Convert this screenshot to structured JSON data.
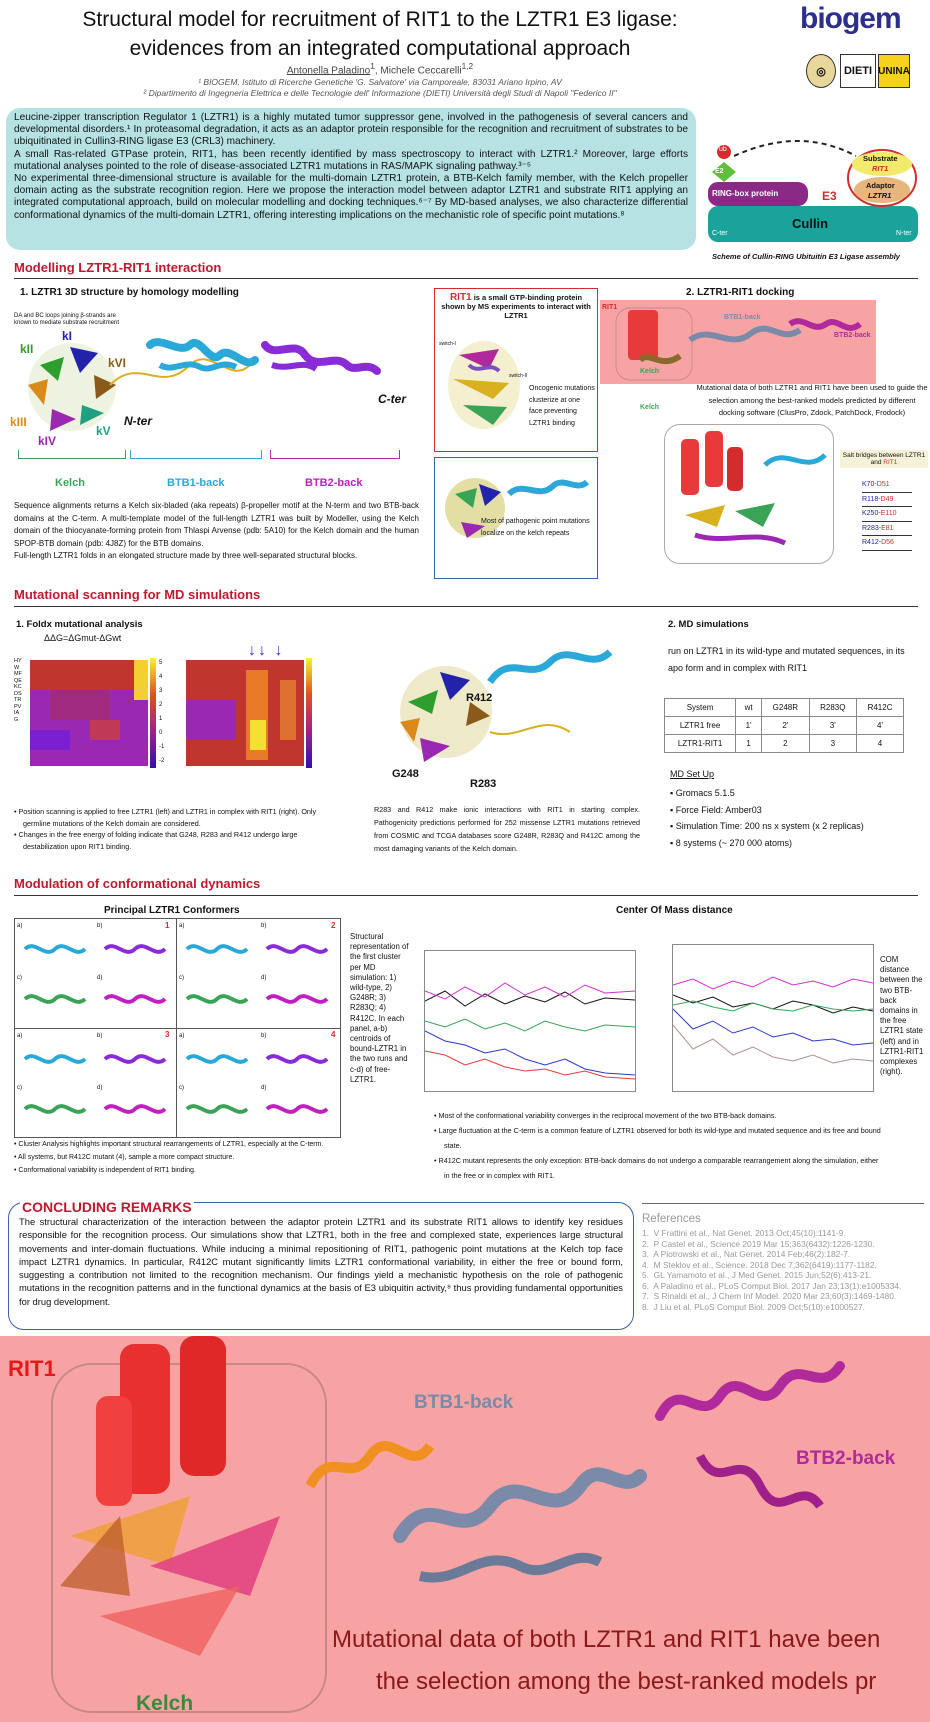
{
  "header": {
    "title_line1": "Structural model for recruitment of RIT1 to the LZTR1 E3 ligase:",
    "title_line2": "evidences from an integrated computational approach",
    "author1": "Antonella Paladino",
    "author1_sup": "1",
    "author2": ", Michele Ceccarelli",
    "author2_sup": "1,2",
    "affiliation1": "¹ BIOGEM, Istituto di Ricerche Genetiche 'G. Salvatore' via Camporeale, 83031 Ariano Irpino, AV",
    "affiliation2": "² Dipartimento di Ingegneria Elettrica e delle Tecnologie dell' Informazione (DIETI) Università degli Studi di Napoli \"Federico II\"",
    "logo_biogem": "biogem",
    "logo_dieti": "DIETI",
    "logo_unina": "UNINA"
  },
  "abstract": {
    "p1": "Leucine-zipper transcription Regulator 1 (LZTR1) is a highly mutated tumor suppressor gene, involved in the pathogenesis of several cancers and developmental disorders.¹ In proteasomal degradation, it acts as an adaptor protein responsible for the recognition and recruitment of substrates to be ubiquitinated in Cullin3-RING ligase E3 (CRL3) machinery.",
    "p2": "A small Ras-related GTPase protein, RIT1, has been recently identified by mass spectroscopy to interact with LZTR1.² Moreover, large efforts mutational analyses pointed to the role of disease-associated LZTR1 mutations in RAS/MAPK signaling pathway.³⁻⁵",
    "p3": "No experimental three-dimensional structure is available for the multi-domain LZTR1 protein, a BTB-Kelch family member, with the Kelch propeller domain acting as the substrate recognition region. Here we propose the interaction model between adaptor LZTR1 and substrate RIT1 applying an integrated computational approach, build on molecular modelling and docking techniques.⁶⁻⁷ By MD-based analyses, we also characterize differential conformational dynamics of the multi-domain LZTR1, offering interesting implications on the mechanistic role of specific point mutations.⁸"
  },
  "scheme": {
    "ub": "ub",
    "e2": "E2",
    "ring": "RING-box protein",
    "e3": "E3",
    "substrate": "Substrate",
    "rit1": "RIT1",
    "adaptor": "Adaptor",
    "lztr1": "LZTR1",
    "cullin": "Cullin",
    "c_ter": "C-ter",
    "n_ter": "N-ter",
    "caption": "Scheme of Cullin-RING Ubituitin E3 Ligase assembly"
  },
  "sec1": {
    "heading": "Modelling LZTR1-RIT1 interaction",
    "sub1": "1. LZTR1 3D structure by homology modelling",
    "loops_note": "DA and BC loops joining β-strands are known to mediate substrate recruitment",
    "blades": [
      "kI",
      "kII",
      "kIII",
      "kIV",
      "kV",
      "kVI"
    ],
    "n_ter": "N-ter",
    "c_ter": "C-ter",
    "domain_kelch": "Kelch",
    "domain_btb1": "BTB1-back",
    "domain_btb2": "BTB2-back",
    "desc": "Sequence alignments returns a Kelch six-bladed (aka repeats) β-propeller motif at the N-term and two BTB-back domains at the C-term. A multi-template model of the full-length LZTR1 was built by Modeller, using the Kelch domain of the thiocyanate-forming protein from Thlaspi Arvense (pdb: 5A10) for the Kelch domain and the human SPOP-BTB domain (pdb: 4J8Z) for the BTB domains.",
    "desc2": "Full-length LZTR1 folds in an elongated structure made by three well-separated structural blocks.",
    "rit1_box_title_a": "RIT1",
    "rit1_box_title_b": " is a small GTP-binding protein shown by MS experiments to interact with LZTR1",
    "rit1_box_text": "Oncogenic mutations clusterize at one face preventing LZTR1 binding",
    "switch1": "switch-I",
    "switch2": "switch-II",
    "kelch_box_text": "Most of pathogenic point mutations localize on the kelch repeats",
    "sub2": "2. LZTR1-RIT1 docking",
    "dock_rit1": "RIT1",
    "dock_btb1": "BTB1-back",
    "dock_btb2": "BTB2-back",
    "dock_kelch": "Kelch",
    "dock_text": "Mutational data of both LZTR1 and RIT1 have been used to guide the selection among the best-ranked models predicted by different docking software (ClusPro, Zdock, PatchDock, Frodock)",
    "salt_title_a": "Salt bridges between LZTR1 and ",
    "salt_title_b": "RIT1",
    "salt_bridges": [
      {
        "a": "K70-",
        "b": "D51"
      },
      {
        "a": "R118-",
        "b": "D49"
      },
      {
        "a": "K250-",
        "b": "E110"
      },
      {
        "a": "R283-",
        "b": "E81"
      },
      {
        "a": "R412-",
        "b": "D56"
      }
    ]
  },
  "sec2": {
    "heading": "Mutational scanning for MD simulations",
    "sub1": "1.  Foldx mutational analysis",
    "formula": "ΔΔG=ΔGmut-ΔGwt",
    "rows_label": "HYWMFQEKCDSTRPVIAG",
    "colorbar_ticks": [
      "5",
      "4",
      "3",
      "2",
      "1",
      "0",
      "-1",
      "-2"
    ],
    "bullets": [
      "Position scanning is applied to free LZTR1 (left) and LZTR1 in complex with RIT1 (right). Only germline mutations of the Kelch domain are considered.",
      "Changes in the free energy of folding indicate that G248, R283 and R412 undergo large destabilization upon RIT1 binding."
    ],
    "struct_labels": [
      "R412",
      "G248",
      "R283"
    ],
    "mid_text": "R283 and R412 make ionic interactions with RIT1 in starting complex. Pathogenicity predictions performed for 252 missense LZTR1 mutations retrieved from COSMIC and TCGA databases score G248R, R283Q and R412C among the most damaging variants of the Kelch domain.",
    "sub2": "2.  MD simulations",
    "md_intro": "run on LZTR1 in its wild-type and mutated sequences, in its apo form and in complex with RIT1",
    "table_header": [
      "System",
      "wt",
      "G248R",
      "R283Q",
      "R412C"
    ],
    "table_rows": [
      [
        "LZTR1 free",
        "1'",
        "2'",
        "3'",
        "4'"
      ],
      [
        "LZTR1-RIT1",
        "1",
        "2",
        "3",
        "4"
      ]
    ],
    "setup_h": "MD Set Up",
    "setup": [
      "Gromacs 5.1.5",
      "Force Field: Amber03",
      "Simulation Time: 200 ns x system  (x 2 replicas)",
      "8 systems (~ 270 000 atoms)"
    ]
  },
  "sec3": {
    "heading": "Modulation of conformational dynamics",
    "conf_title": "Principal LZTR1 Conformers",
    "panel_nums": [
      "1",
      "2",
      "3",
      "4"
    ],
    "sub_labels": [
      "a)",
      "b)",
      "c)",
      "d)"
    ],
    "conf_caption": "Structural representation of the first cluster per MD simulation: 1) wild-type, 2) G248R; 3) R283Q; 4) R412C. In each panel, a-b) centroids of bound-LZTR1 in the two runs and c-d) of free-LZTR1.",
    "conf_bullets": [
      "Cluster Analysis highlights important structural rearrangements of LZTR1, especially at the C-term.",
      "All systems, but R412C mutant (4), sample a more compact structure.",
      "Conformational variability is independent of RIT1 binding."
    ],
    "com_title": "Center Of Mass distance",
    "com_caption": "COM distance between the two BTB-back domains in the free LZTR1 state (left) and in LZTR1-RIT1 complexes (right).",
    "com_bullets": [
      "Most of the conformational variability converges in the reciprocal movement of the two BTB-back domains.",
      "Large fluctuation at the C-term is a common feature of LZTR1 observed for both its wild-type and mutated sequence and its free and bound state.",
      "R412C mutant represents the only exception: BTB-back domains do not undergo a comparable rearrangement along the simulation, either in the free or in complex with RIT1."
    ]
  },
  "conclusion": {
    "heading": "CONCLUDING REMARKS",
    "text": "The structural characterization of the interaction between the adaptor protein LZTR1 and its substrate RIT1 allows to identify key residues responsible for the recognition process. Our simulations show that LZTR1, both in the free and complexed state, experiences large structural movements and inter-domain fluctuations. While inducing a minimal repositioning of RIT1, pathogenic point mutations at the Kelch top face impact LZTR1 dynamics. In particular, R412C mutant significantly limits LZTR1 conformational variability, in either the free or bound form, suggesting a contribution not limited to the recognition mechanism. Our findings yield a mechanistic hypothesis on the role of pathogenic mutations in the recognition patterns and in the functional dynamics at the basis of E3 ubiquitin activity,⁸ thus providing fundamental opportunities for drug development."
  },
  "references": {
    "heading": "References",
    "items": [
      "V Frattini et al., Nat Genet. 2013 Oct;45(10):1141-9.",
      "P Castel et al., Science 2019 Mar 15;363(6432):1226-1230.",
      "A Piotrowski et al., Nat Genet. 2014 Feb;46(2):182-7.",
      "M Steklov et al., Science. 2018 Dec 7;362(6419):1177-1182.",
      "GL Yamamoto et al., J Med Genet. 2015 Jun;52(6):413-21.",
      "A Paladino et al., PLoS Comput Biol. 2017 Jan 23;13(1):e1005334.",
      "S Rinaldi et al., J Chem Inf Model. 2020 Mar 23;60(3):1469-1480.",
      "J Liu et al. PLoS Comput Biol. 2009 Oct;5(10):e1000527."
    ]
  },
  "zoom": {
    "rit1": "RIT1",
    "btb1": "BTB1-back",
    "btb2": "BTB2-back",
    "kelch": "Kelch",
    "line1": "Mutational data of both LZTR1 and RIT1 have been",
    "line2": "the selection among the best-ranked models pr"
  },
  "colors": {
    "accent_red": "#c0182e",
    "abstract_bg": "#b6e2e4",
    "zoom_bg": "#f8a3a3",
    "kelch_green": "#3aa356",
    "btb1_blue": "#2aa8d8",
    "btb2_magenta": "#c020c0"
  }
}
